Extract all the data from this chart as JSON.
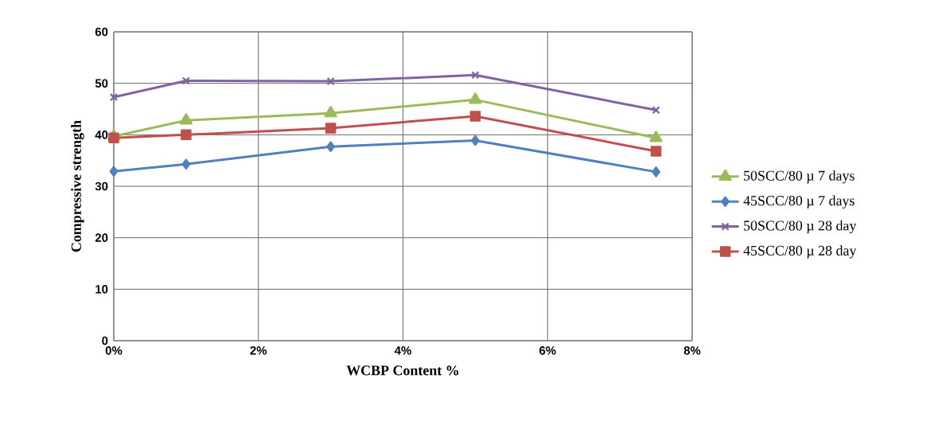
{
  "chart_data": {
    "type": "line",
    "xlabel": "WCBP Content %",
    "ylabel": "Compressive strength",
    "x": [
      0,
      1,
      3,
      5,
      7.5
    ],
    "series": [
      {
        "name": "50SCC/80 µ 7 days",
        "color": "#9bbb59",
        "marker": "triangle",
        "values": [
          39.7,
          42.8,
          44.2,
          46.8,
          39.4
        ]
      },
      {
        "name": "45SCC/80 µ 7 days",
        "color": "#4f81bd",
        "marker": "diamond",
        "values": [
          32.9,
          34.3,
          37.7,
          38.9,
          32.8
        ]
      },
      {
        "name": "50SCC/80 µ 28 day",
        "color": "#8064a2",
        "marker": "cross",
        "values": [
          47.3,
          50.5,
          50.4,
          51.6,
          44.8
        ]
      },
      {
        "name": "45SCC/80 µ 28 day",
        "color": "#c0504d",
        "marker": "square",
        "values": [
          39.4,
          40.0,
          41.3,
          43.6,
          36.8
        ]
      }
    ],
    "xlim": [
      0,
      8
    ],
    "ylim": [
      0,
      60
    ],
    "xticks": [
      {
        "value": 0,
        "label": "0%"
      },
      {
        "value": 2,
        "label": "2%"
      },
      {
        "value": 4,
        "label": "4%"
      },
      {
        "value": 6,
        "label": "6%"
      },
      {
        "value": 8,
        "label": "8%"
      }
    ],
    "yticks": [
      0,
      10,
      20,
      30,
      40,
      50,
      60
    ],
    "grid": true,
    "legend": "right",
    "line_style": "solid"
  }
}
